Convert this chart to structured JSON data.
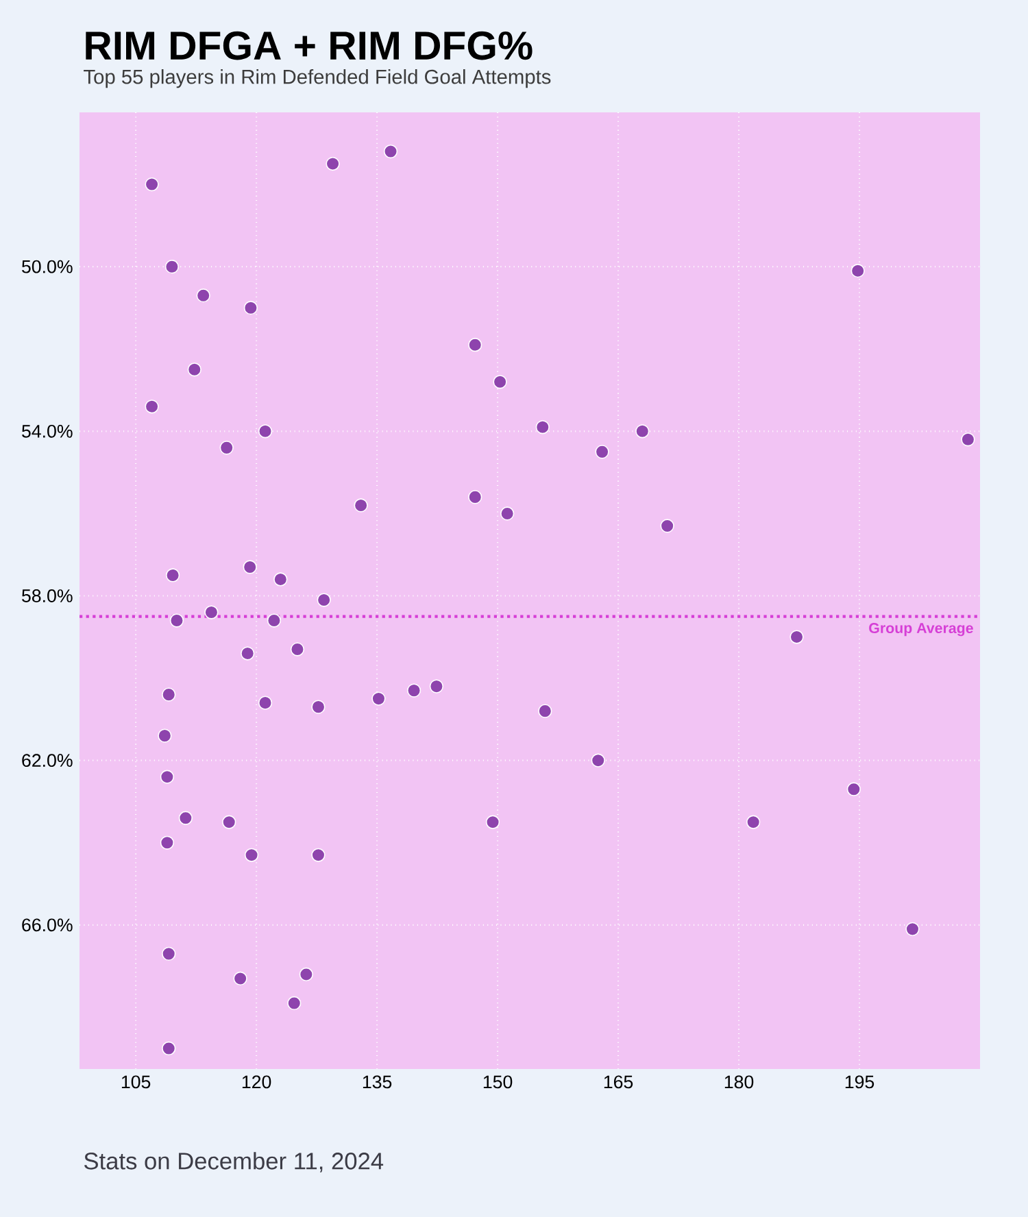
{
  "chart_data": {
    "type": "scatter",
    "title": "RIM DFGA + RIM DFG%",
    "subtitle": "Top 55 players in Rim Defended Field Goal Attempts",
    "annotations": [
      "Stats on December 11, 2024"
    ],
    "xlim": [
      98,
      210
    ],
    "xticks": [
      105,
      120,
      135,
      150,
      165,
      180,
      195
    ],
    "ylim": [
      69.5,
      46.25
    ],
    "yticks": [
      {
        "value": 50,
        "label": "50.0%"
      },
      {
        "value": 54,
        "label": "54.0%"
      },
      {
        "value": 58,
        "label": "58.0%"
      },
      {
        "value": 62,
        "label": "62.0%"
      },
      {
        "value": 66,
        "label": "66.0%"
      }
    ],
    "grid": true,
    "ref_lines": [
      {
        "axis": "y",
        "value": 58.5,
        "label": "Group Average",
        "color": "#d63fd6",
        "line_style": "dotted"
      }
    ],
    "series": [
      {
        "color": "#8e44ad",
        "x": [
          107.0,
          129.5,
          136.7,
          109.5,
          113.4,
          119.3,
          112.3,
          107.0,
          121.1,
          116.3,
          133.0,
          147.2,
          150.3,
          155.6,
          163.0,
          168.0,
          147.2,
          151.2,
          171.1,
          194.8,
          208.5,
          109.6,
          119.2,
          123.0,
          128.4,
          110.1,
          114.4,
          122.2,
          118.9,
          125.1,
          109.1,
          121.1,
          127.7,
          135.2,
          139.6,
          142.4,
          155.9,
          162.5,
          187.2,
          194.3,
          181.8,
          149.4,
          201.6,
          108.6,
          108.9,
          108.9,
          111.2,
          116.6,
          119.4,
          127.7,
          109.1,
          118.0,
          124.7,
          126.2,
          109.1
        ],
        "values": [
          48.0,
          47.5,
          47.2,
          50.0,
          50.7,
          51.0,
          52.5,
          53.4,
          54.0,
          54.4,
          55.8,
          51.9,
          52.8,
          53.9,
          54.5,
          54.0,
          55.6,
          56.0,
          56.3,
          50.1,
          54.2,
          57.5,
          57.3,
          57.6,
          58.1,
          58.6,
          58.4,
          58.6,
          59.4,
          59.3,
          60.4,
          60.6,
          60.7,
          60.5,
          60.3,
          60.2,
          60.8,
          62.0,
          59.0,
          62.7,
          63.5,
          63.5,
          66.1,
          61.4,
          62.4,
          64.0,
          63.4,
          63.5,
          64.3,
          64.3,
          66.7,
          67.3,
          67.9,
          67.2,
          69.0
        ]
      }
    ]
  }
}
